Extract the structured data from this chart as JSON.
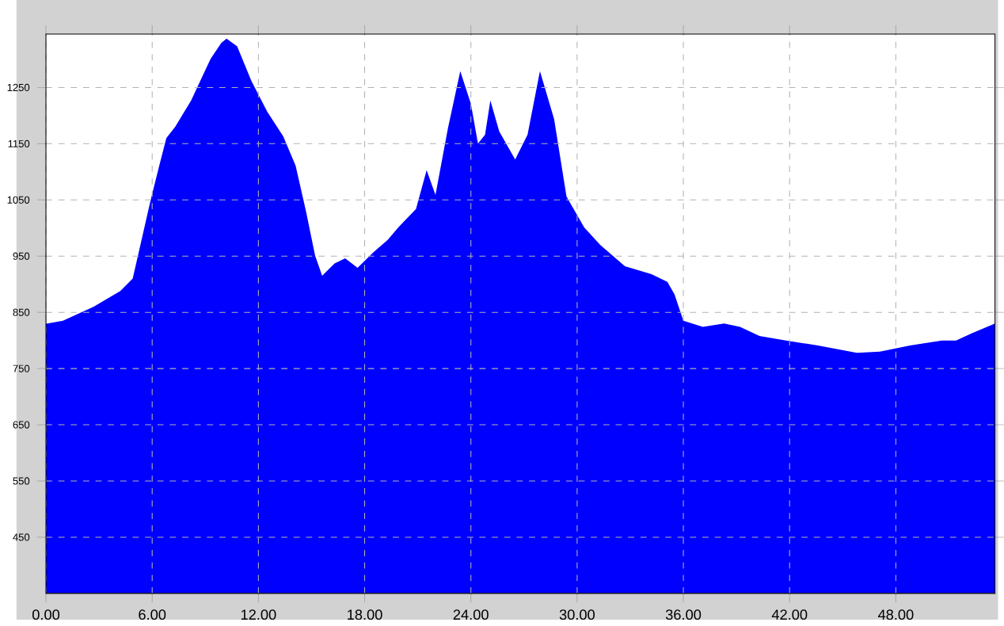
{
  "chart_data": {
    "type": "area",
    "color": "#0000ff",
    "x": [
      0,
      0.09,
      0.96,
      2.7,
      4.2,
      4.9,
      5.3,
      5.9,
      6.4,
      6.8,
      7.3,
      8.2,
      9.3,
      9.9,
      10.2,
      10.8,
      11.6,
      12.5,
      13.4,
      14.1,
      14.7,
      15.2,
      15.6,
      16.3,
      16.9,
      17.6,
      18.5,
      19.3,
      19.9,
      20.9,
      21.5,
      22.0,
      22.7,
      23.4,
      24.0,
      24.4,
      24.8,
      25.1,
      25.6,
      26.5,
      27.2,
      27.9,
      28.7,
      29.4,
      30.4,
      31.3,
      32.7,
      34.2,
      35.1,
      35.5,
      36.0,
      37.1,
      38.3,
      39.2,
      40.3,
      41.8,
      43.6,
      45.8,
      47.1,
      48.8,
      50.6,
      51.4,
      52.3,
      53.6
    ],
    "values": [
      830,
      830,
      835,
      860,
      888,
      910,
      965,
      1048,
      1111,
      1160,
      1180,
      1227,
      1301,
      1329,
      1337,
      1323,
      1262,
      1207,
      1163,
      1111,
      1028,
      951,
      915,
      937,
      946,
      929,
      957,
      979,
      1001,
      1034,
      1103,
      1059,
      1177,
      1279,
      1221,
      1150,
      1166,
      1227,
      1172,
      1122,
      1166,
      1279,
      1194,
      1056,
      1001,
      970,
      932,
      918,
      904,
      882,
      835,
      824,
      830,
      824,
      808,
      800,
      791,
      778,
      780,
      791,
      800,
      800,
      813,
      830
    ],
    "xlim": [
      0,
      53.6
    ],
    "ylim": [
      350,
      1345
    ],
    "xticks": [
      {
        "value": 0,
        "label": "0.00"
      },
      {
        "value": 6,
        "label": "6.00"
      },
      {
        "value": 12,
        "label": "12.00"
      },
      {
        "value": 18,
        "label": "18.00"
      },
      {
        "value": 24,
        "label": "24.00"
      },
      {
        "value": 30,
        "label": "30.00"
      },
      {
        "value": 36,
        "label": "36.00"
      },
      {
        "value": 42,
        "label": "42.00"
      },
      {
        "value": 48,
        "label": "48.00"
      }
    ],
    "yticks": [
      450,
      550,
      650,
      750,
      850,
      950,
      1050,
      1150,
      1250
    ],
    "grid": true
  }
}
